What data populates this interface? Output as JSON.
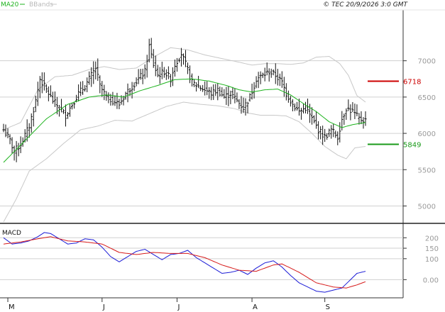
{
  "header": {
    "indicator_1": "MA20",
    "indicator_2": "BBands",
    "copyright": "© TEC 20/9/2026 3:0 GMT"
  },
  "colors": {
    "ma": "#1db31d",
    "bbands": "#c8c8c8",
    "price": "#111111",
    "resistance": "#cc0000",
    "support": "#1a9a1a",
    "macd_line": "#1a1ad6",
    "signal_line": "#d61a1a",
    "grid": "#d0d0d0"
  },
  "chart_data": [
    {
      "type": "line",
      "subtype": "ohlc_bar_chart_with_overlays",
      "title": "",
      "y_tick_labels": [
        "7000",
        "6500",
        "6000",
        "5500",
        "5000"
      ],
      "y_ticks": [
        7000,
        6500,
        6000,
        5500,
        5000
      ],
      "ylim": [
        4780,
        7700
      ],
      "grid": true,
      "x_tick_labels": [
        "M",
        "J",
        "J",
        "A",
        "S"
      ],
      "x_tick_index": [
        2,
        46,
        81,
        116,
        150
      ],
      "bar_count": 170,
      "price_anchors": [
        [
          0,
          6050
        ],
        [
          3,
          5900
        ],
        [
          5,
          5750
        ],
        [
          8,
          5850
        ],
        [
          12,
          6100
        ],
        [
          15,
          6450
        ],
        [
          17,
          6750
        ],
        [
          20,
          6600
        ],
        [
          23,
          6450
        ],
        [
          26,
          6350
        ],
        [
          29,
          6250
        ],
        [
          32,
          6400
        ],
        [
          35,
          6550
        ],
        [
          38,
          6650
        ],
        [
          41,
          6800
        ],
        [
          43,
          6900
        ],
        [
          45,
          6650
        ],
        [
          48,
          6500
        ],
        [
          51,
          6450
        ],
        [
          54,
          6400
        ],
        [
          57,
          6550
        ],
        [
          60,
          6650
        ],
        [
          63,
          6750
        ],
        [
          66,
          6850
        ],
        [
          68,
          7200
        ],
        [
          70,
          6950
        ],
        [
          72,
          6800
        ],
        [
          75,
          6850
        ],
        [
          78,
          6750
        ],
        [
          80,
          6950
        ],
        [
          83,
          7100
        ],
        [
          85,
          6950
        ],
        [
          88,
          6700
        ],
        [
          91,
          6650
        ],
        [
          94,
          6600
        ],
        [
          97,
          6550
        ],
        [
          100,
          6600
        ],
        [
          103,
          6500
        ],
        [
          106,
          6550
        ],
        [
          109,
          6450
        ],
        [
          112,
          6350
        ],
        [
          115,
          6500
        ],
        [
          118,
          6750
        ],
        [
          121,
          6800
        ],
        [
          124,
          6850
        ],
        [
          127,
          6800
        ],
        [
          130,
          6700
        ],
        [
          132,
          6550
        ],
        [
          135,
          6400
        ],
        [
          138,
          6300
        ],
        [
          141,
          6350
        ],
        [
          144,
          6200
        ],
        [
          147,
          6050
        ],
        [
          150,
          5950
        ],
        [
          153,
          6050
        ],
        [
          156,
          5950
        ],
        [
          158,
          6200
        ],
        [
          160,
          6350
        ],
        [
          163,
          6300
        ],
        [
          166,
          6200
        ],
        [
          169,
          6180
        ]
      ],
      "ma20_anchors": [
        [
          0,
          5600
        ],
        [
          10,
          5900
        ],
        [
          20,
          6200
        ],
        [
          30,
          6400
        ],
        [
          40,
          6500
        ],
        [
          48,
          6530
        ],
        [
          56,
          6500
        ],
        [
          64,
          6590
        ],
        [
          72,
          6660
        ],
        [
          80,
          6740
        ],
        [
          88,
          6750
        ],
        [
          96,
          6720
        ],
        [
          104,
          6660
        ],
        [
          110,
          6600
        ],
        [
          116,
          6570
        ],
        [
          122,
          6600
        ],
        [
          128,
          6610
        ],
        [
          134,
          6530
        ],
        [
          140,
          6410
        ],
        [
          146,
          6300
        ],
        [
          152,
          6160
        ],
        [
          158,
          6080
        ],
        [
          163,
          6120
        ],
        [
          169,
          6150
        ]
      ],
      "bb_upper_anchors": [
        [
          0,
          6050
        ],
        [
          8,
          6150
        ],
        [
          16,
          6600
        ],
        [
          24,
          6780
        ],
        [
          32,
          6800
        ],
        [
          40,
          6880
        ],
        [
          47,
          6920
        ],
        [
          54,
          6880
        ],
        [
          62,
          6900
        ],
        [
          70,
          7050
        ],
        [
          78,
          7180
        ],
        [
          86,
          7150
        ],
        [
          94,
          7080
        ],
        [
          102,
          7030
        ],
        [
          110,
          6980
        ],
        [
          116,
          6940
        ],
        [
          122,
          6960
        ],
        [
          128,
          6960
        ],
        [
          134,
          6950
        ],
        [
          140,
          6970
        ],
        [
          146,
          7050
        ],
        [
          152,
          7060
        ],
        [
          157,
          6960
        ],
        [
          161,
          6800
        ],
        [
          165,
          6520
        ],
        [
          169,
          6430
        ]
      ],
      "bb_lower_anchors": [
        [
          0,
          4780
        ],
        [
          6,
          5100
        ],
        [
          12,
          5480
        ],
        [
          20,
          5650
        ],
        [
          28,
          5860
        ],
        [
          36,
          6050
        ],
        [
          44,
          6100
        ],
        [
          52,
          6180
        ],
        [
          60,
          6170
        ],
        [
          68,
          6270
        ],
        [
          76,
          6370
        ],
        [
          84,
          6430
        ],
        [
          92,
          6400
        ],
        [
          100,
          6380
        ],
        [
          108,
          6340
        ],
        [
          114,
          6280
        ],
        [
          120,
          6250
        ],
        [
          126,
          6250
        ],
        [
          132,
          6240
        ],
        [
          138,
          6160
        ],
        [
          144,
          6000
        ],
        [
          150,
          5820
        ],
        [
          156,
          5700
        ],
        [
          160,
          5650
        ],
        [
          164,
          5800
        ],
        [
          169,
          5820
        ]
      ],
      "levels": [
        {
          "label": "6718",
          "value": 6718,
          "kind": "resistance"
        },
        {
          "label": "5849",
          "value": 5849,
          "kind": "support"
        }
      ]
    },
    {
      "type": "line",
      "title": "MACD",
      "y_tick_labels": [
        "200",
        "150",
        "100",
        "0.00"
      ],
      "y_ticks": [
        200,
        150,
        100,
        0
      ],
      "ylim": [
        -80,
        245
      ],
      "grid": true,
      "series": [
        {
          "key": "macd",
          "anchors": [
            [
              0,
              200
            ],
            [
              4,
              170
            ],
            [
              8,
              175
            ],
            [
              12,
              185
            ],
            [
              16,
              205
            ],
            [
              19,
              225
            ],
            [
              22,
              220
            ],
            [
              26,
              195
            ],
            [
              30,
              170
            ],
            [
              34,
              175
            ],
            [
              38,
              195
            ],
            [
              42,
              190
            ],
            [
              46,
              155
            ],
            [
              50,
              110
            ],
            [
              54,
              85
            ],
            [
              58,
              110
            ],
            [
              62,
              135
            ],
            [
              66,
              145
            ],
            [
              70,
              120
            ],
            [
              74,
              95
            ],
            [
              78,
              120
            ],
            [
              82,
              125
            ],
            [
              86,
              140
            ],
            [
              90,
              105
            ],
            [
              94,
              80
            ],
            [
              98,
              55
            ],
            [
              102,
              30
            ],
            [
              106,
              35
            ],
            [
              110,
              45
            ],
            [
              114,
              25
            ],
            [
              118,
              55
            ],
            [
              122,
              80
            ],
            [
              126,
              90
            ],
            [
              130,
              60
            ],
            [
              134,
              20
            ],
            [
              138,
              -15
            ],
            [
              142,
              -35
            ],
            [
              146,
              -55
            ],
            [
              150,
              -60
            ],
            [
              154,
              -50
            ],
            [
              158,
              -40
            ],
            [
              161,
              -10
            ],
            [
              165,
              30
            ],
            [
              169,
              40
            ]
          ]
        },
        {
          "key": "signal",
          "anchors": [
            [
              0,
              170
            ],
            [
              8,
              180
            ],
            [
              16,
              195
            ],
            [
              22,
              205
            ],
            [
              30,
              185
            ],
            [
              38,
              180
            ],
            [
              46,
              170
            ],
            [
              54,
              130
            ],
            [
              62,
              120
            ],
            [
              70,
              130
            ],
            [
              78,
              125
            ],
            [
              86,
              125
            ],
            [
              94,
              105
            ],
            [
              102,
              70
            ],
            [
              110,
              45
            ],
            [
              118,
              40
            ],
            [
              126,
              70
            ],
            [
              130,
              75
            ],
            [
              138,
              35
            ],
            [
              146,
              -15
            ],
            [
              154,
              -35
            ],
            [
              160,
              -40
            ],
            [
              165,
              -25
            ],
            [
              169,
              -10
            ]
          ]
        }
      ]
    }
  ]
}
